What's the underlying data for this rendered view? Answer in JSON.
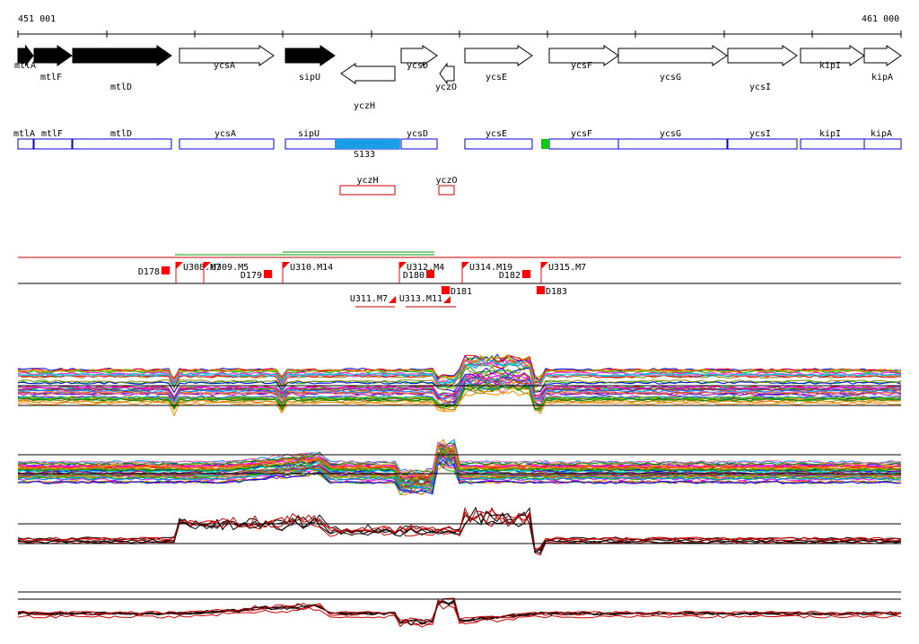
{
  "coords": {
    "start": "451 001",
    "end": "461 000"
  },
  "genes": [
    {
      "label": "mtlA",
      "strand": 1,
      "filled": true,
      "label_row": 0
    },
    {
      "label": "mtlF",
      "strand": 1,
      "filled": true,
      "label_row": 1
    },
    {
      "label": "mtlD",
      "strand": 1,
      "filled": true,
      "label_row": 2
    },
    {
      "label": "ycsA",
      "strand": 1,
      "filled": false,
      "label_row": 0
    },
    {
      "label": "sipU",
      "strand": 1,
      "filled": true,
      "label_row": 1
    },
    {
      "label": "yczH",
      "strand": -1,
      "filled": false,
      "label_row": 3
    },
    {
      "label": "ycsD",
      "strand": 1,
      "filled": false,
      "label_row": 0
    },
    {
      "label": "yczO",
      "strand": -1,
      "filled": false,
      "label_row": 2
    },
    {
      "label": "ycsE",
      "strand": 1,
      "filled": false,
      "label_row": 1
    },
    {
      "label": "ycsF",
      "strand": 1,
      "filled": false,
      "label_row": 0
    },
    {
      "label": "ycsG",
      "strand": 1,
      "filled": false,
      "label_row": 1
    },
    {
      "label": "ycsI",
      "strand": 1,
      "filled": false,
      "label_row": 2
    },
    {
      "label": "kipI",
      "strand": 1,
      "filled": false,
      "label_row": 0
    },
    {
      "label": "kipA",
      "strand": 1,
      "filled": false,
      "label_row": 1
    }
  ],
  "annotation_row1": [
    "mtlA",
    "mtlF",
    "mtlD",
    "ycsA",
    "sipU",
    "ycsD",
    "ycsE",
    "ycsF",
    "ycsG",
    "ycsI",
    "kipI",
    "kipA"
  ],
  "annotation_row2": [
    "yczH",
    "yczO"
  ],
  "highlight_label": "S133",
  "features": [
    {
      "label": "D178",
      "type": "D"
    },
    {
      "label": "U308.M7",
      "type": "U"
    },
    {
      "label": "U309.M5",
      "type": "U"
    },
    {
      "label": "D179",
      "type": "D"
    },
    {
      "label": "U310.M14",
      "type": "U"
    },
    {
      "label": "U311.M7",
      "type": "Ulow"
    },
    {
      "label": "U312.M4",
      "type": "U"
    },
    {
      "label": "D180",
      "type": "D"
    },
    {
      "label": "U313.M11",
      "type": "Ulow"
    },
    {
      "label": "D181",
      "type": "Dlow"
    },
    {
      "label": "U314.M19",
      "type": "U"
    },
    {
      "label": "D182",
      "type": "D"
    },
    {
      "label": "U315.M7",
      "type": "U"
    },
    {
      "label": "D183",
      "type": "Dlow"
    }
  ],
  "colors": {
    "track_box": "#0000cc",
    "track_box_neg": "#cc0000",
    "highlight": "#1a9fe6",
    "marker": "#ff0000",
    "green": "#00cc00"
  }
}
